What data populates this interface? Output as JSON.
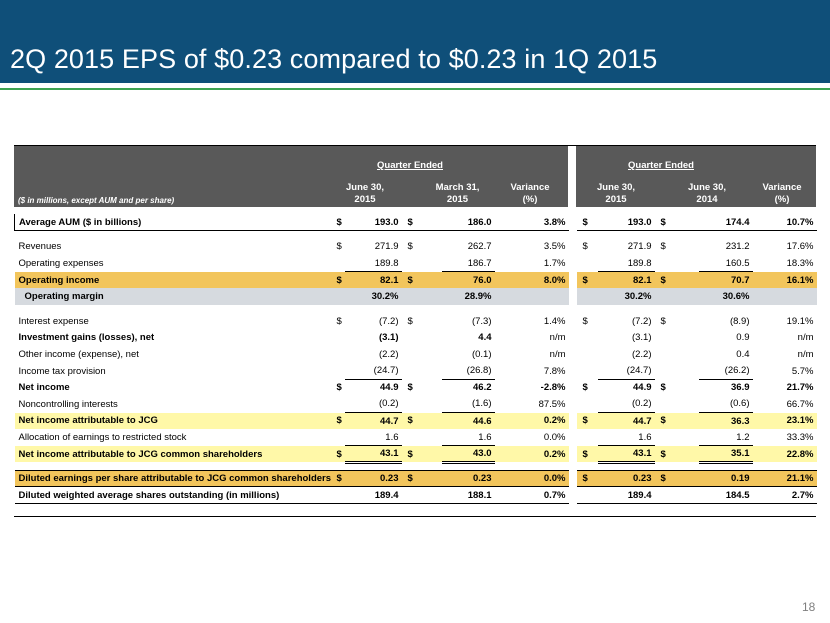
{
  "slide": {
    "title": "2Q 2015 EPS of $0.23 compared to $0.23 in 1Q 2015",
    "page_number": "18"
  },
  "colors": {
    "header_bg": "#0f4f79",
    "rule": "#3ea352",
    "table_header_bg": "#595959",
    "gold": "#f2c55c",
    "gray": "#d6dadf",
    "yellow": "#fff8a8"
  },
  "table": {
    "units_note": "($ in millions, except AUM and per share)",
    "groups": [
      {
        "title": "Quarter Ended",
        "cols": [
          "June 30,\n2015",
          "March 31,\n2015",
          "Variance\n(%)"
        ]
      },
      {
        "title": "Quarter Ended",
        "cols": [
          "June 30,\n2015",
          "June 30,\n2014",
          "Variance\n(%)"
        ]
      }
    ],
    "rows": [
      {
        "label": "Average AUM ($ in billions)",
        "c": [
          "$",
          "193.0",
          "$",
          "186.0",
          "3.8%",
          "$",
          "193.0",
          "$",
          "174.4",
          "10.7%"
        ],
        "style": "bold bl bb"
      },
      {
        "spacer": true
      },
      {
        "label": "Revenues",
        "c": [
          "$",
          "271.9",
          "$",
          "262.7",
          "3.5%",
          "$",
          "271.9",
          "$",
          "231.2",
          "17.6%"
        ]
      },
      {
        "label": "Operating expenses",
        "c": [
          "",
          "189.8",
          "",
          "186.7",
          "1.7%",
          "",
          "189.8",
          "",
          "160.5",
          "18.3%"
        ],
        "ul": true
      },
      {
        "label": "Operating income",
        "c": [
          "$",
          "82.1",
          "$",
          "76.0",
          "8.0%",
          "$",
          "82.1",
          "$",
          "70.7",
          "16.1%"
        ],
        "style": "bold hl-gold"
      },
      {
        "label": "Operating margin",
        "c": [
          "",
          "30.2%",
          "",
          "28.9%",
          "",
          "",
          "30.2%",
          "",
          "30.6%",
          ""
        ],
        "style": "bold hl-gray indent"
      },
      {
        "spacer": true
      },
      {
        "label": "Interest expense",
        "c": [
          "$",
          "(7.2)",
          "$",
          "(7.3)",
          "1.4%",
          "$",
          "(7.2)",
          "$",
          "(8.9)",
          "19.1%"
        ]
      },
      {
        "label": "Investment gains (losses), net",
        "c": [
          "",
          "(3.1)",
          "",
          "4.4",
          "n/m",
          "",
          "(3.1)",
          "",
          "0.9",
          "n/m"
        ],
        "bold_main": true
      },
      {
        "label": "Other income (expense), net",
        "c": [
          "",
          "(2.2)",
          "",
          "(0.1)",
          "n/m",
          "",
          "(2.2)",
          "",
          "0.4",
          "n/m"
        ]
      },
      {
        "label": "Income tax provision",
        "c": [
          "",
          "(24.7)",
          "",
          "(26.8)",
          "7.8%",
          "",
          "(24.7)",
          "",
          "(26.2)",
          "5.7%"
        ],
        "ul": true
      },
      {
        "label": "Net income",
        "c": [
          "$",
          "44.9",
          "$",
          "46.2",
          "-2.8%",
          "$",
          "44.9",
          "$",
          "36.9",
          "21.7%"
        ],
        "style": "bold"
      },
      {
        "label": "Noncontrolling interests",
        "c": [
          "",
          "(0.2)",
          "",
          "(1.6)",
          "87.5%",
          "",
          "(0.2)",
          "",
          "(0.6)",
          "66.7%"
        ],
        "ul": true
      },
      {
        "label": "Net income attributable to JCG",
        "c": [
          "$",
          "44.7",
          "$",
          "44.6",
          "0.2%",
          "$",
          "44.7",
          "$",
          "36.3",
          "23.1%"
        ],
        "style": "bold hl-yellow"
      },
      {
        "label": "Allocation of earnings to restricted stock",
        "c": [
          "",
          "1.6",
          "",
          "1.6",
          "0.0%",
          "",
          "1.6",
          "",
          "1.2",
          "33.3%"
        ],
        "ul": true
      },
      {
        "label": "Net income attributable to JCG common shareholders",
        "c": [
          "$",
          "43.1",
          "$",
          "43.0",
          "0.2%",
          "$",
          "43.1",
          "$",
          "35.1",
          "22.8%"
        ],
        "style": "bold hl-yellow",
        "dul": true
      },
      {
        "spacer": true
      },
      {
        "label": "Diluted earnings per share attributable to JCG common shareholders",
        "c": [
          "$",
          "0.23",
          "$",
          "0.23",
          "0.0%",
          "$",
          "0.23",
          "$",
          "0.19",
          "21.1%"
        ],
        "style": "bold hl-gold bt bb"
      },
      {
        "label": "Diluted weighted average shares outstanding (in millions)",
        "c": [
          "",
          "189.4",
          "",
          "188.1",
          "0.7%",
          "",
          "189.4",
          "",
          "184.5",
          "2.7%"
        ],
        "style": "bold bb"
      }
    ]
  }
}
